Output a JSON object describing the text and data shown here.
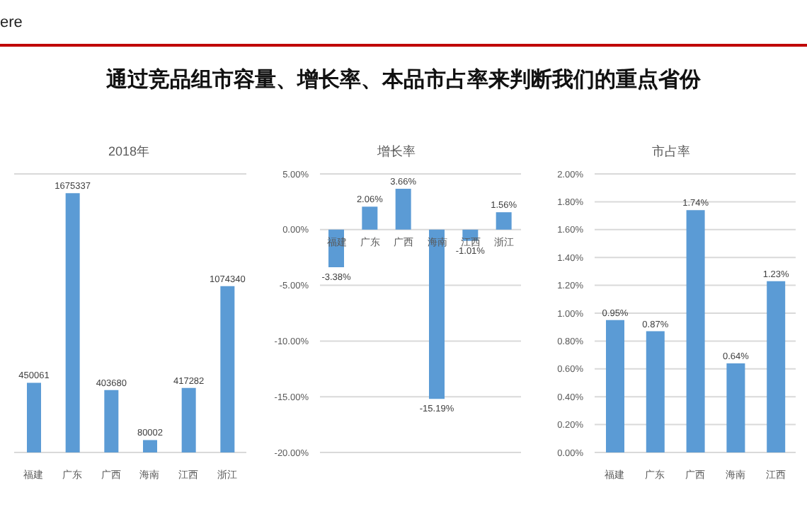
{
  "chart_data": [
    {
      "type": "other",
      "title": "通过竞品组市容量、增长率、本品市占率来判断我们的重点省份",
      "annotations": [
        "ere"
      ]
    },
    {
      "type": "bar",
      "title": "2018年",
      "categories": [
        "福建",
        "广东",
        "广西",
        "海南",
        "江西",
        "浙江"
      ],
      "values": [
        450061,
        1675337,
        403680,
        80002,
        417282,
        1074340
      ],
      "color": "#5b9bd5",
      "data_labels": true,
      "ylim": [
        0,
        1800000
      ],
      "tick_labels": "x",
      "grid": "y"
    },
    {
      "type": "bar",
      "title": "增长率",
      "categories": [
        "福建",
        "广东",
        "广西",
        "海南",
        "江西",
        "浙江"
      ],
      "values": [
        -3.38,
        2.06,
        3.66,
        -15.19,
        -1.01,
        1.56
      ],
      "value_labels": [
        "-3.38%",
        "2.06%",
        "3.66%",
        "-15.19%",
        "-1.01%",
        "1.56%"
      ],
      "color": "#5b9bd5",
      "ylim": [
        -20,
        5
      ],
      "yticks": [
        {
          "value": -20,
          "label": "-20.00%"
        },
        {
          "value": -15,
          "label": "-15.00%"
        },
        {
          "value": -10,
          "label": "-10.00%"
        },
        {
          "value": -5,
          "label": "-5.00%"
        },
        {
          "value": 0,
          "label": "0.00%"
        },
        {
          "value": 5,
          "label": "5.00%"
        }
      ],
      "grid": "y"
    },
    {
      "type": "bar",
      "title": "市占率",
      "categories": [
        "福建",
        "广东",
        "广西",
        "海南",
        "江西"
      ],
      "values": [
        0.95,
        0.87,
        1.74,
        0.64,
        1.23
      ],
      "value_labels": [
        "0.95%",
        "0.87%",
        "1.74%",
        "0.64%",
        "1.23%"
      ],
      "color": "#5b9bd5",
      "ylim": [
        0,
        2
      ],
      "yticks": [
        {
          "value": 0,
          "label": "0.00%"
        },
        {
          "value": 0.2,
          "label": "0.20%"
        },
        {
          "value": 0.4,
          "label": "0.40%"
        },
        {
          "value": 0.6,
          "label": "0.60%"
        },
        {
          "value": 0.8,
          "label": "0.80%"
        },
        {
          "value": 1,
          "label": "1.00%"
        },
        {
          "value": 1.2,
          "label": "1.20%"
        },
        {
          "value": 1.4,
          "label": "1.40%"
        },
        {
          "value": 1.6,
          "label": "1.60%"
        },
        {
          "value": 1.8,
          "label": "1.80%"
        },
        {
          "value": 2,
          "label": "2.00%"
        }
      ],
      "grid": "y"
    }
  ]
}
